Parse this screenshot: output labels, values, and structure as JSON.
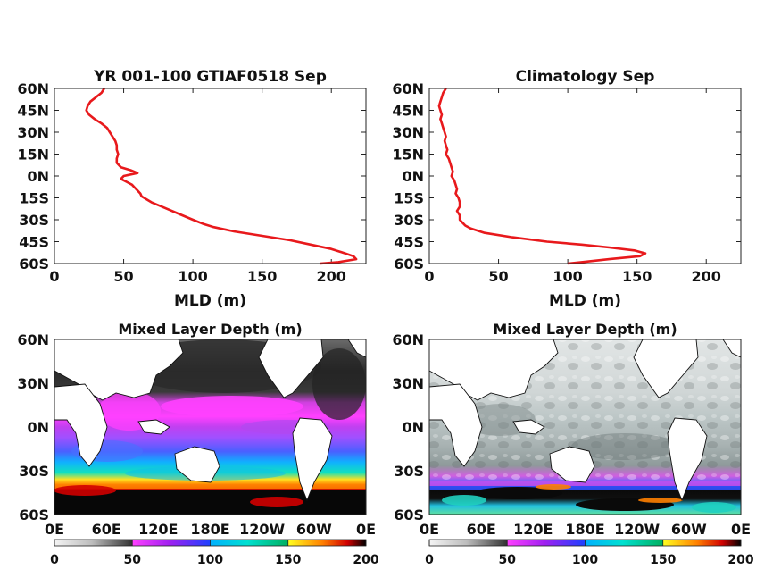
{
  "chart_data": [
    {
      "type": "line",
      "title": "YR 001-100 GTIAF0518 Sep",
      "xlabel": "MLD (m)",
      "xlim": [
        0,
        225
      ],
      "ylim": [
        -60,
        60
      ],
      "xticks": [
        0,
        50,
        100,
        150,
        200
      ],
      "xtick_labels": [
        "0",
        "50",
        "100",
        "150",
        "200"
      ],
      "yticks": [
        60,
        45,
        30,
        15,
        0,
        -15,
        -30,
        -45,
        -60
      ],
      "ytick_labels": [
        "60N",
        "45N",
        "30N",
        "15N",
        "0N",
        "15S",
        "30S",
        "45S",
        "60S"
      ],
      "color": "#e8191c",
      "series": [
        {
          "x": [
            36,
            34,
            30,
            26,
            24,
            23,
            25,
            29,
            34,
            38,
            40,
            42,
            44,
            45,
            45,
            46,
            45,
            45,
            48,
            55,
            60,
            50,
            48,
            52,
            56,
            58,
            60,
            62,
            63,
            70,
            80,
            90,
            100,
            108,
            115,
            130,
            150,
            170,
            185,
            200,
            210,
            216,
            218,
            205,
            192
          ],
          "y": [
            60,
            57,
            54,
            51,
            48,
            45,
            42,
            39,
            36,
            33,
            30,
            27,
            24,
            21,
            18,
            15,
            12,
            9,
            6,
            4,
            2,
            0,
            -2,
            -4,
            -6,
            -8,
            -10,
            -12,
            -14,
            -18,
            -22,
            -26,
            -30,
            -33,
            -35,
            -38,
            -41,
            -44,
            -47,
            -50,
            -53,
            -55,
            -57,
            -59,
            -60
          ]
        }
      ]
    },
    {
      "type": "line",
      "title": "Climatology Sep",
      "xlabel": "MLD (m)",
      "xlim": [
        0,
        225
      ],
      "ylim": [
        -60,
        60
      ],
      "xticks": [
        0,
        50,
        100,
        150,
        200
      ],
      "xtick_labels": [
        "0",
        "50",
        "100",
        "150",
        "200"
      ],
      "yticks": [
        60,
        45,
        30,
        15,
        0,
        -15,
        -30,
        -45,
        -60
      ],
      "ytick_labels": [
        "60N",
        "45N",
        "30N",
        "15N",
        "0N",
        "15S",
        "30S",
        "45S",
        "60S"
      ],
      "color": "#e8191c",
      "series": [
        {
          "x": [
            12,
            10,
            9,
            8,
            7,
            8,
            9,
            8,
            9,
            10,
            11,
            12,
            11,
            12,
            13,
            12,
            14,
            15,
            16,
            17,
            16,
            18,
            19,
            20,
            19,
            21,
            22,
            22,
            20,
            22,
            22,
            24,
            26,
            30,
            40,
            60,
            85,
            110,
            130,
            148,
            156,
            152,
            130,
            110,
            100
          ],
          "y": [
            60,
            57,
            54,
            51,
            48,
            45,
            42,
            39,
            36,
            33,
            30,
            27,
            24,
            21,
            18,
            15,
            12,
            9,
            6,
            3,
            0,
            -3,
            -6,
            -9,
            -12,
            -15,
            -18,
            -21,
            -24,
            -27,
            -30,
            -32,
            -34,
            -36,
            -39,
            -42,
            -45,
            -47,
            -49,
            -51,
            -53,
            -55,
            -57,
            -59,
            -60
          ]
        }
      ]
    },
    {
      "type": "heatmap",
      "title": "Mixed Layer Depth (m)",
      "xtick_labels": [
        "0E",
        "60E",
        "120E",
        "180E",
        "120W",
        "60W",
        "0E"
      ],
      "ytick_labels": [
        "60N",
        "30N",
        "0N",
        "30S",
        "60S"
      ],
      "ylim": [
        -60,
        60
      ],
      "colorbar": {
        "ticks": [
          "0",
          "50",
          "100",
          "150",
          "200"
        ],
        "range": [
          0,
          200
        ],
        "colors": [
          "#f4f4f4",
          "#cfcfcf",
          "#9a9a9a",
          "#555555",
          "#1a1a1a",
          "#ff00ff",
          "#8a2be2",
          "#0000ff",
          "#00a0ff",
          "#00e0c0",
          "#00c060",
          "#ffff00",
          "#ff8000",
          "#d00000",
          "#000000"
        ]
      }
    },
    {
      "type": "heatmap",
      "title": "Mixed Layer Depth (m)",
      "xtick_labels": [
        "0E",
        "60E",
        "120E",
        "180E",
        "120W",
        "60W",
        "0E"
      ],
      "ytick_labels": [
        "60N",
        "30N",
        "0N",
        "30S",
        "60S"
      ],
      "ylim": [
        -60,
        60
      ],
      "colorbar": {
        "ticks": [
          "0",
          "50",
          "100",
          "150",
          "200"
        ],
        "range": [
          0,
          200
        ],
        "colors": [
          "#f4f4f4",
          "#cfcfcf",
          "#9a9a9a",
          "#555555",
          "#1a1a1a",
          "#ff00ff",
          "#8a2be2",
          "#0000ff",
          "#00a0ff",
          "#00e0c0",
          "#00c060",
          "#ffff00",
          "#ff8000",
          "#d00000",
          "#000000"
        ]
      }
    }
  ]
}
